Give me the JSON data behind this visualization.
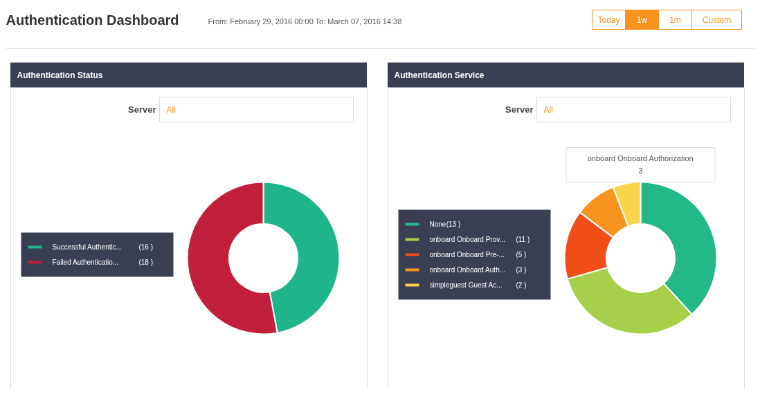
{
  "chart_data": [
    {
      "type": "donut",
      "title": "Authentication Status",
      "categories": [
        "Successful Authentic...",
        "Failed Authenticatio..."
      ],
      "values": [
        16,
        18
      ],
      "value_labels": [
        "(16 )",
        "(18 )"
      ],
      "colors": [
        "#1fb58a",
        "#c0203a"
      ],
      "legend": "left",
      "annotations": [
        "Authentication Dashboard",
        "From: February 29, 2016 00:00 To: March 07, 2016 14:38",
        "Today",
        "1w",
        "1m",
        "Custom",
        "Server",
        "All"
      ]
    },
    {
      "type": "donut",
      "title": "Authentication Service",
      "categories": [
        "None",
        "onboard Onboard Prov...",
        "onboard Onboard Pre-...",
        "onboard Onboard Auth...",
        "simpleguest Guest Ac..."
      ],
      "values": [
        13,
        11,
        5,
        3,
        2
      ],
      "value_labels": [
        "(13 )",
        "(11 )",
        "(5 )",
        "(3 )",
        "(2 )"
      ],
      "colors": [
        "#22b888",
        "#a6d04a",
        "#f04e17",
        "#f7931e",
        "#f9d44a"
      ],
      "legend": "left",
      "annotations": [
        "Server",
        "All",
        "onboard Onboard Authorization",
        "3"
      ]
    }
  ]
}
